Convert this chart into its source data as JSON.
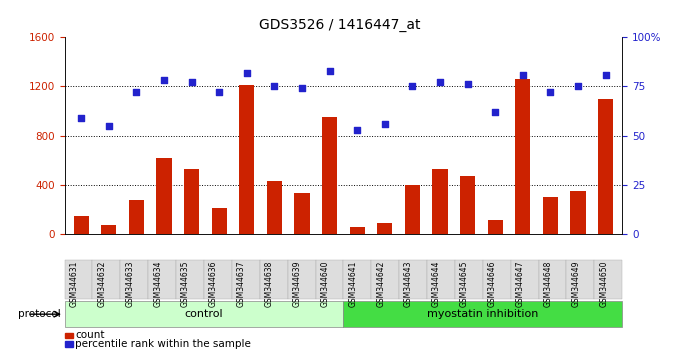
{
  "title": "GDS3526 / 1416447_at",
  "samples": [
    "GSM344631",
    "GSM344632",
    "GSM344633",
    "GSM344634",
    "GSM344635",
    "GSM344636",
    "GSM344637",
    "GSM344638",
    "GSM344639",
    "GSM344640",
    "GSM344641",
    "GSM344642",
    "GSM344643",
    "GSM344644",
    "GSM344645",
    "GSM344646",
    "GSM344647",
    "GSM344648",
    "GSM344649",
    "GSM344650"
  ],
  "counts": [
    150,
    70,
    280,
    620,
    530,
    210,
    1210,
    430,
    330,
    950,
    55,
    90,
    400,
    530,
    470,
    110,
    1260,
    300,
    350,
    1100
  ],
  "percentile": [
    59,
    55,
    72,
    78,
    77,
    72,
    82,
    75,
    74,
    83,
    53,
    56,
    75,
    77,
    76,
    62,
    81,
    72,
    75,
    81
  ],
  "control_count": 10,
  "bar_color": "#cc2200",
  "dot_color": "#2222cc",
  "control_bg": "#ccffcc",
  "myostatin_bg": "#44dd44",
  "ylabel_left": "",
  "ylabel_right": "",
  "ylim_left": [
    0,
    1600
  ],
  "ylim_right": [
    0,
    100
  ],
  "yticks_left": [
    0,
    400,
    800,
    1200,
    1600
  ],
  "yticks_right": [
    0,
    25,
    50,
    75,
    100
  ],
  "yticklabels_left": [
    "0",
    "400",
    "800",
    "1200",
    "1600"
  ],
  "yticklabels_right": [
    "0",
    "25",
    "50",
    "75",
    "100%"
  ],
  "hlines": [
    400,
    800,
    1200
  ],
  "protocol_label": "protocol",
  "control_label": "control",
  "myostatin_label": "myostatin inhibition",
  "legend_count": "count",
  "legend_percentile": "percentile rank within the sample",
  "xtick_bg": "#dddddd"
}
